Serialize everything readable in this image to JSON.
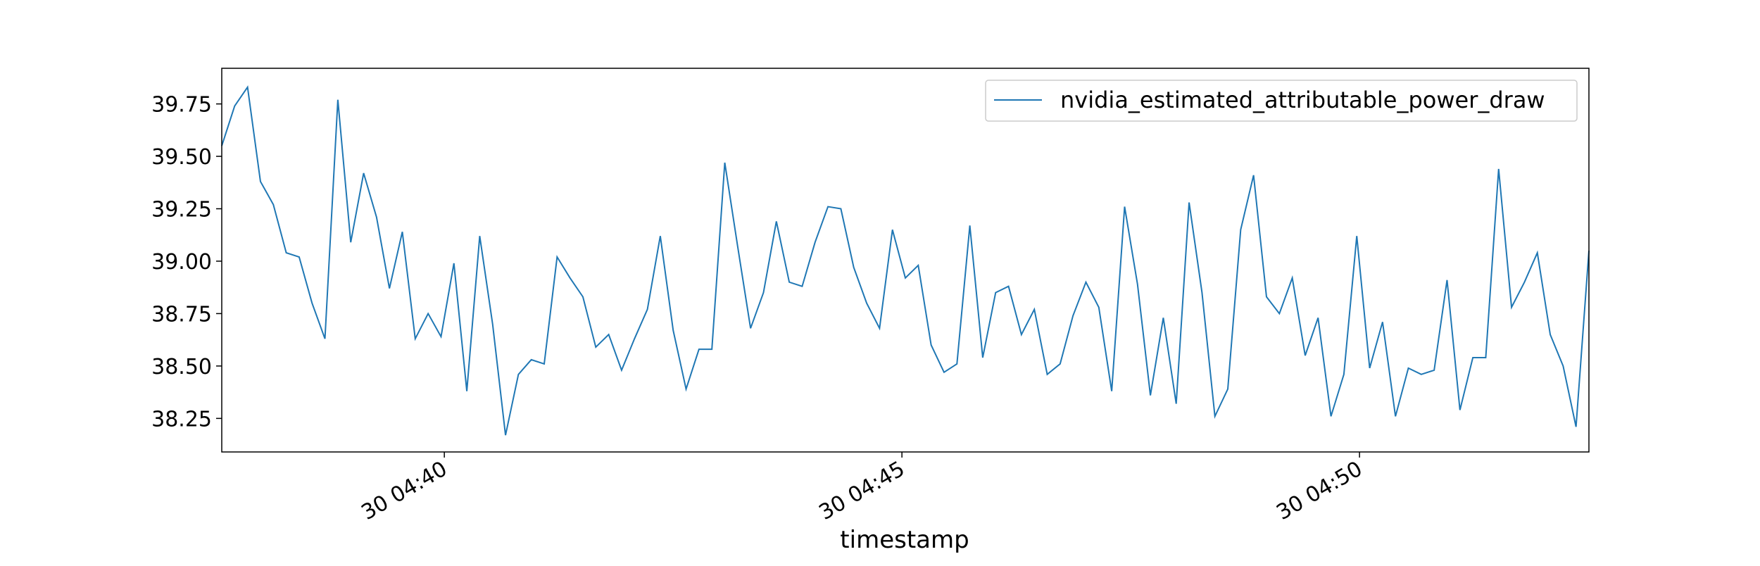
{
  "chart_data": {
    "type": "line",
    "title": "",
    "xlabel": "timestamp",
    "ylabel": "",
    "x_tick_labels": [
      "30 04:40",
      "30 04:45",
      "30 04:50"
    ],
    "y_tick_labels": [
      "38.25",
      "38.50",
      "38.75",
      "39.00",
      "39.25",
      "39.50",
      "39.75"
    ],
    "y_ticks": [
      38.25,
      38.5,
      38.75,
      39.0,
      39.25,
      39.5,
      39.75
    ],
    "ylim": [
      38.09,
      39.92
    ],
    "grid": false,
    "legend_position": "upper right",
    "series": [
      {
        "name": "nvidia_estimated_attributable_power_draw",
        "color": "#1f77b4",
        "values": [
          39.55,
          39.74,
          39.83,
          39.38,
          39.27,
          39.04,
          39.02,
          38.8,
          38.63,
          39.77,
          39.09,
          39.42,
          39.21,
          38.87,
          39.14,
          38.63,
          38.75,
          38.64,
          38.99,
          38.38,
          39.12,
          38.7,
          38.17,
          38.46,
          38.53,
          38.51,
          39.02,
          38.92,
          38.83,
          38.59,
          38.65,
          38.48,
          38.63,
          38.77,
          39.12,
          38.67,
          38.39,
          38.58,
          38.58,
          39.47,
          39.07,
          38.68,
          38.85,
          39.19,
          38.9,
          38.88,
          39.09,
          39.26,
          39.25,
          38.97,
          38.8,
          38.68,
          39.15,
          38.92,
          38.98,
          38.6,
          38.47,
          38.51,
          39.17,
          38.54,
          38.85,
          38.88,
          38.65,
          38.77,
          38.46,
          38.51,
          38.74,
          38.9,
          38.78,
          38.38,
          39.26,
          38.89,
          38.36,
          38.73,
          38.32,
          39.28,
          38.85,
          38.26,
          38.39,
          39.15,
          39.41,
          38.83,
          38.75,
          38.92,
          38.55,
          38.73,
          38.26,
          38.46,
          39.12,
          38.49,
          38.71,
          38.26,
          38.49,
          38.46,
          38.48,
          38.91,
          38.29,
          38.54,
          38.54,
          39.44,
          38.78,
          38.9,
          39.04,
          38.65,
          38.5,
          38.21,
          39.05
        ]
      }
    ]
  }
}
